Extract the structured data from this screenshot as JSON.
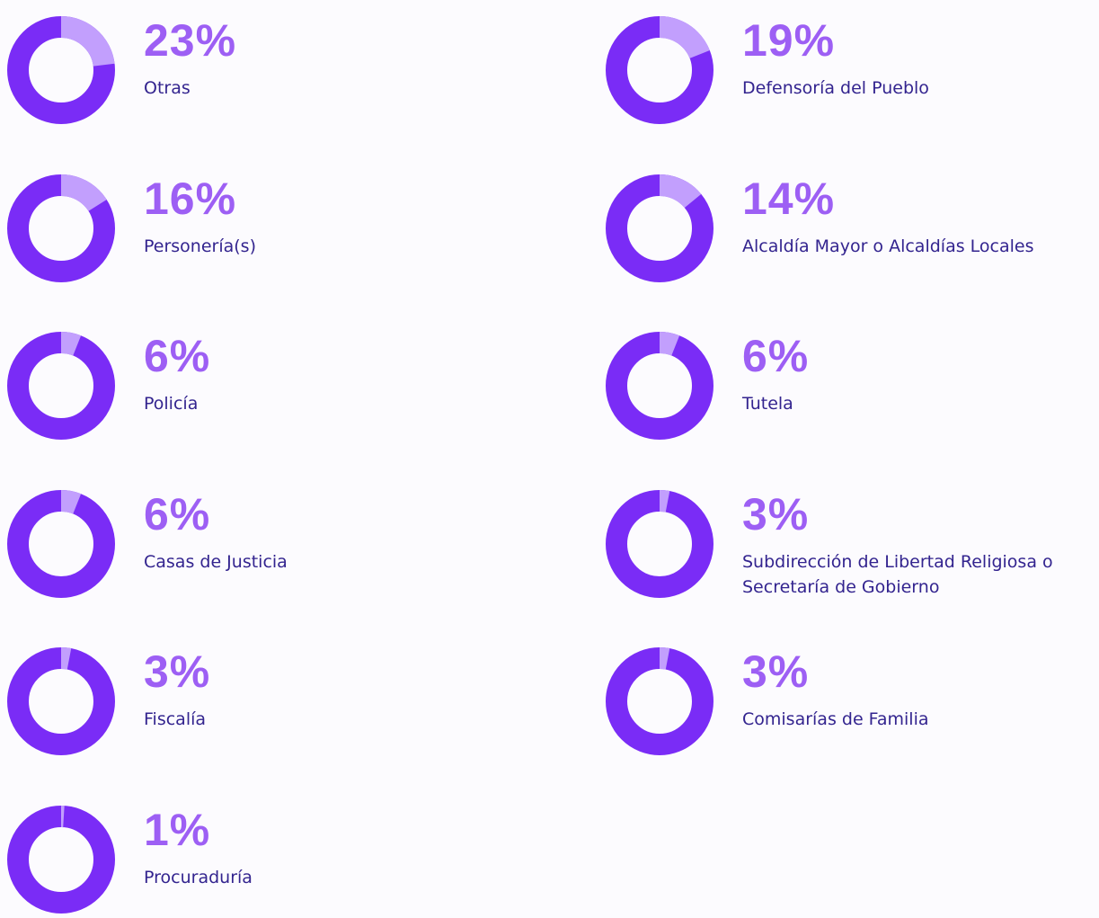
{
  "chart_data": [
    {
      "type": "donut",
      "title": "Otras",
      "values": [
        23
      ],
      "value_labels": [
        "23%"
      ],
      "color": "#c29ffd",
      "ring_color": "#7a2cf6",
      "label_color": "#9d5ff4"
    },
    {
      "type": "donut",
      "title": "Defensoría del Pueblo",
      "values": [
        19
      ],
      "value_labels": [
        "19%"
      ],
      "color": "#c29ffd",
      "ring_color": "#7a2cf6",
      "label_color": "#9d5ff4"
    },
    {
      "type": "donut",
      "title": "Personería(s)",
      "values": [
        16
      ],
      "value_labels": [
        "16%"
      ],
      "color": "#c29ffd",
      "ring_color": "#7a2cf6",
      "label_color": "#9d5ff4"
    },
    {
      "type": "donut",
      "title": "Alcaldía Mayor o Alcaldías Locales",
      "values": [
        14
      ],
      "value_labels": [
        "14%"
      ],
      "color": "#c29ffd",
      "ring_color": "#7a2cf6",
      "label_color": "#9d5ff4"
    },
    {
      "type": "donut",
      "title": "Policía",
      "values": [
        6
      ],
      "value_labels": [
        "6%"
      ],
      "color": "#c29ffd",
      "ring_color": "#7a2cf6",
      "label_color": "#9d5ff4"
    },
    {
      "type": "donut",
      "title": "Tutela",
      "values": [
        6
      ],
      "value_labels": [
        "6%"
      ],
      "color": "#c29ffd",
      "ring_color": "#7a2cf6",
      "label_color": "#9d5ff4"
    },
    {
      "type": "donut",
      "title": "Casas de Justicia",
      "values": [
        6
      ],
      "value_labels": [
        "6%"
      ],
      "color": "#c29ffd",
      "ring_color": "#7a2cf6",
      "label_color": "#9d5ff4"
    },
    {
      "type": "donut",
      "title": "Subdirección de Libertad Religiosa o Secretaría de Gobierno",
      "values": [
        3
      ],
      "value_labels": [
        "3%"
      ],
      "color": "#c29ffd",
      "ring_color": "#7a2cf6",
      "label_color": "#9d5ff4"
    },
    {
      "type": "donut",
      "title": "Fiscalía",
      "values": [
        3
      ],
      "value_labels": [
        "3%"
      ],
      "color": "#c29ffd",
      "ring_color": "#7a2cf6",
      "label_color": "#9d5ff4"
    },
    {
      "type": "donut",
      "title": "Comisarías de Familia",
      "values": [
        3
      ],
      "value_labels": [
        "3%"
      ],
      "color": "#c29ffd",
      "ring_color": "#7a2cf6",
      "label_color": "#9d5ff4"
    },
    {
      "type": "donut",
      "title": "Procuraduría",
      "values": [
        1
      ],
      "value_labels": [
        "1%"
      ],
      "color": "#c29ffd",
      "ring_color": "#7a2cf6",
      "label_color": "#9d5ff4"
    }
  ]
}
